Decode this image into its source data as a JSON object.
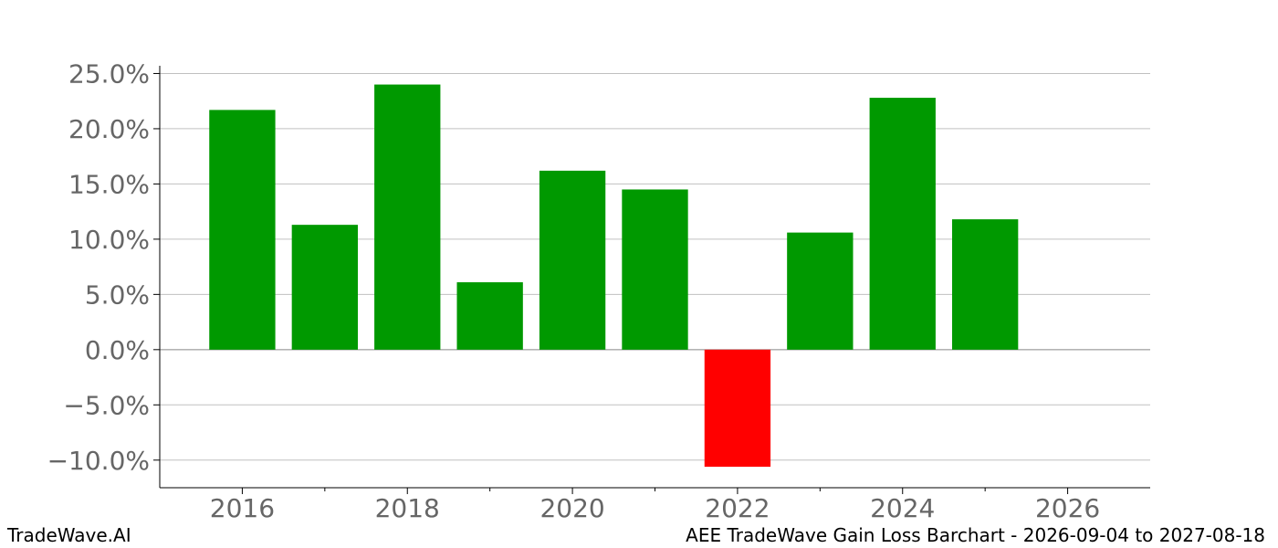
{
  "footer": {
    "brand": "TradeWave.AI",
    "caption": "AEE TradeWave Gain Loss Barchart - 2026-09-04 to 2027-08-18"
  },
  "chart_data": {
    "type": "bar",
    "title": "",
    "xlabel": "",
    "ylabel": "",
    "categories": [
      2016,
      2017,
      2018,
      2019,
      2020,
      2021,
      2022,
      2023,
      2024,
      2025
    ],
    "values": [
      21.7,
      11.3,
      24.0,
      6.1,
      16.2,
      14.5,
      -10.6,
      10.6,
      22.8,
      11.8
    ],
    "xlim": [
      2015,
      2027
    ],
    "ylim": [
      -12.5,
      25.7
    ],
    "x_ticks": [
      2016,
      2018,
      2020,
      2022,
      2024,
      2026
    ],
    "x_minor_ticks": [
      2017,
      2019,
      2021,
      2023,
      2025
    ],
    "y_ticks": [
      25.0,
      20.0,
      15.0,
      10.0,
      5.0,
      0.0,
      -5.0,
      -10.0
    ],
    "y_tick_labels": [
      "25.0%",
      "20.0%",
      "15.0%",
      "10.0%",
      "5.0%",
      "0.0%",
      "−5.0%",
      "−10.0%"
    ],
    "grid": true,
    "colors": {
      "gain": "#009900",
      "loss": "#ff0000",
      "grid": "#c0c0c0",
      "zero_line": "#888888",
      "axis": "#000000",
      "tick_label": "#666666"
    }
  }
}
